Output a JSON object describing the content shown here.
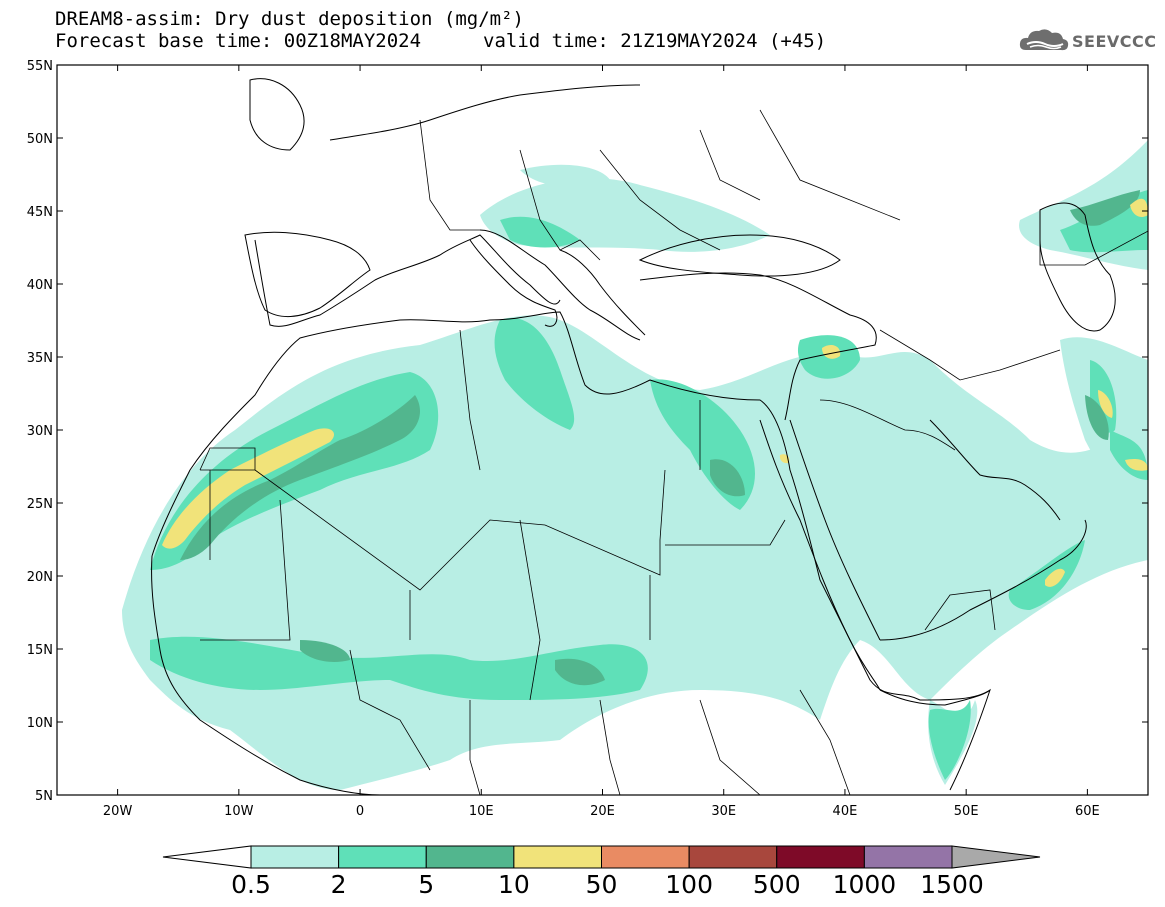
{
  "title": {
    "line1": "DREAM8-assim: Dry dust deposition (mg/m²)",
    "line2_base": "Forecast base time: 00Z18MAY2024",
    "line2_valid": "valid time: 21Z19MAY2024 (+45)"
  },
  "logo": {
    "text": "SEEVCCC",
    "icon": "cloud-icon"
  },
  "map": {
    "lat_range": [
      5,
      55
    ],
    "lon_range": [
      -25,
      65
    ],
    "lat_ticks": [
      "55N",
      "50N",
      "45N",
      "40N",
      "35N",
      "30N",
      "25N",
      "20N",
      "15N",
      "10N",
      "5N"
    ],
    "lon_ticks": [
      "20W",
      "10W",
      "0",
      "10E",
      "20E",
      "30E",
      "40E",
      "50E",
      "60E"
    ],
    "layers": [
      "coastlines",
      "country-borders",
      "dust-deposition-shading"
    ]
  },
  "colorbar": {
    "labels": [
      "0.5",
      "2",
      "5",
      "10",
      "50",
      "100",
      "500",
      "1000",
      "1500"
    ],
    "colors": [
      "#ffffff",
      "#b8eee4",
      "#5fe0b8",
      "#52b68e",
      "#f1e37a",
      "#e98b63",
      "#a8473d",
      "#7e0a28",
      "#9474a7",
      "#a9a9a9"
    ]
  }
}
